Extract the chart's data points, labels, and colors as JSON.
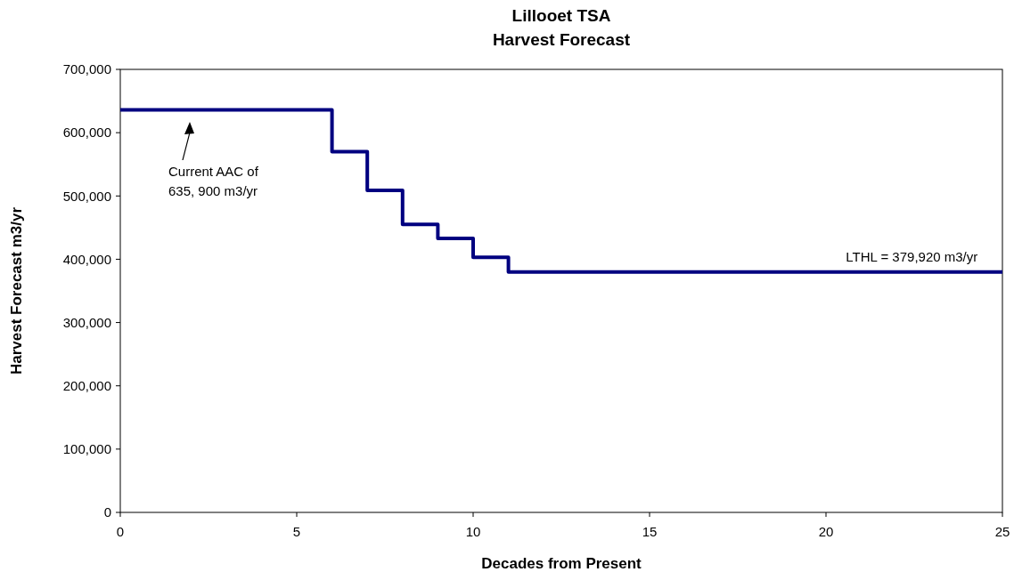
{
  "chart_data": {
    "type": "step",
    "title": "Lillooet TSA\nHarvest Forecast",
    "xlabel": "Decades from Present",
    "ylabel": "Harvest Forecast m3/yr",
    "x": [
      0,
      6,
      7,
      8,
      9,
      10,
      11,
      25
    ],
    "series": [
      {
        "color": "#000080",
        "values": [
          635900,
          570000,
          509000,
          455000,
          433000,
          403000,
          379920,
          379920
        ]
      }
    ],
    "xlim": [
      0,
      25
    ],
    "xticks": [
      0,
      5,
      10,
      15,
      20,
      25
    ],
    "ylim": [
      0,
      700000
    ],
    "yticks": [
      {
        "value": 0,
        "label": "0"
      },
      {
        "value": 100000,
        "label": "100,000"
      },
      {
        "value": 200000,
        "label": "200,000"
      },
      {
        "value": 300000,
        "label": "300,000"
      },
      {
        "value": 400000,
        "label": "400,000"
      },
      {
        "value": 500000,
        "label": "500,000"
      },
      {
        "value": 600000,
        "label": "600,000"
      },
      {
        "value": 700000,
        "label": "700,000"
      }
    ],
    "annotations": [
      "Current AAC of\n635, 900 m3/yr",
      {
        "text": "LTHL = 379,920 m3/yr",
        "x": 24.3,
        "y": 379920
      }
    ]
  }
}
